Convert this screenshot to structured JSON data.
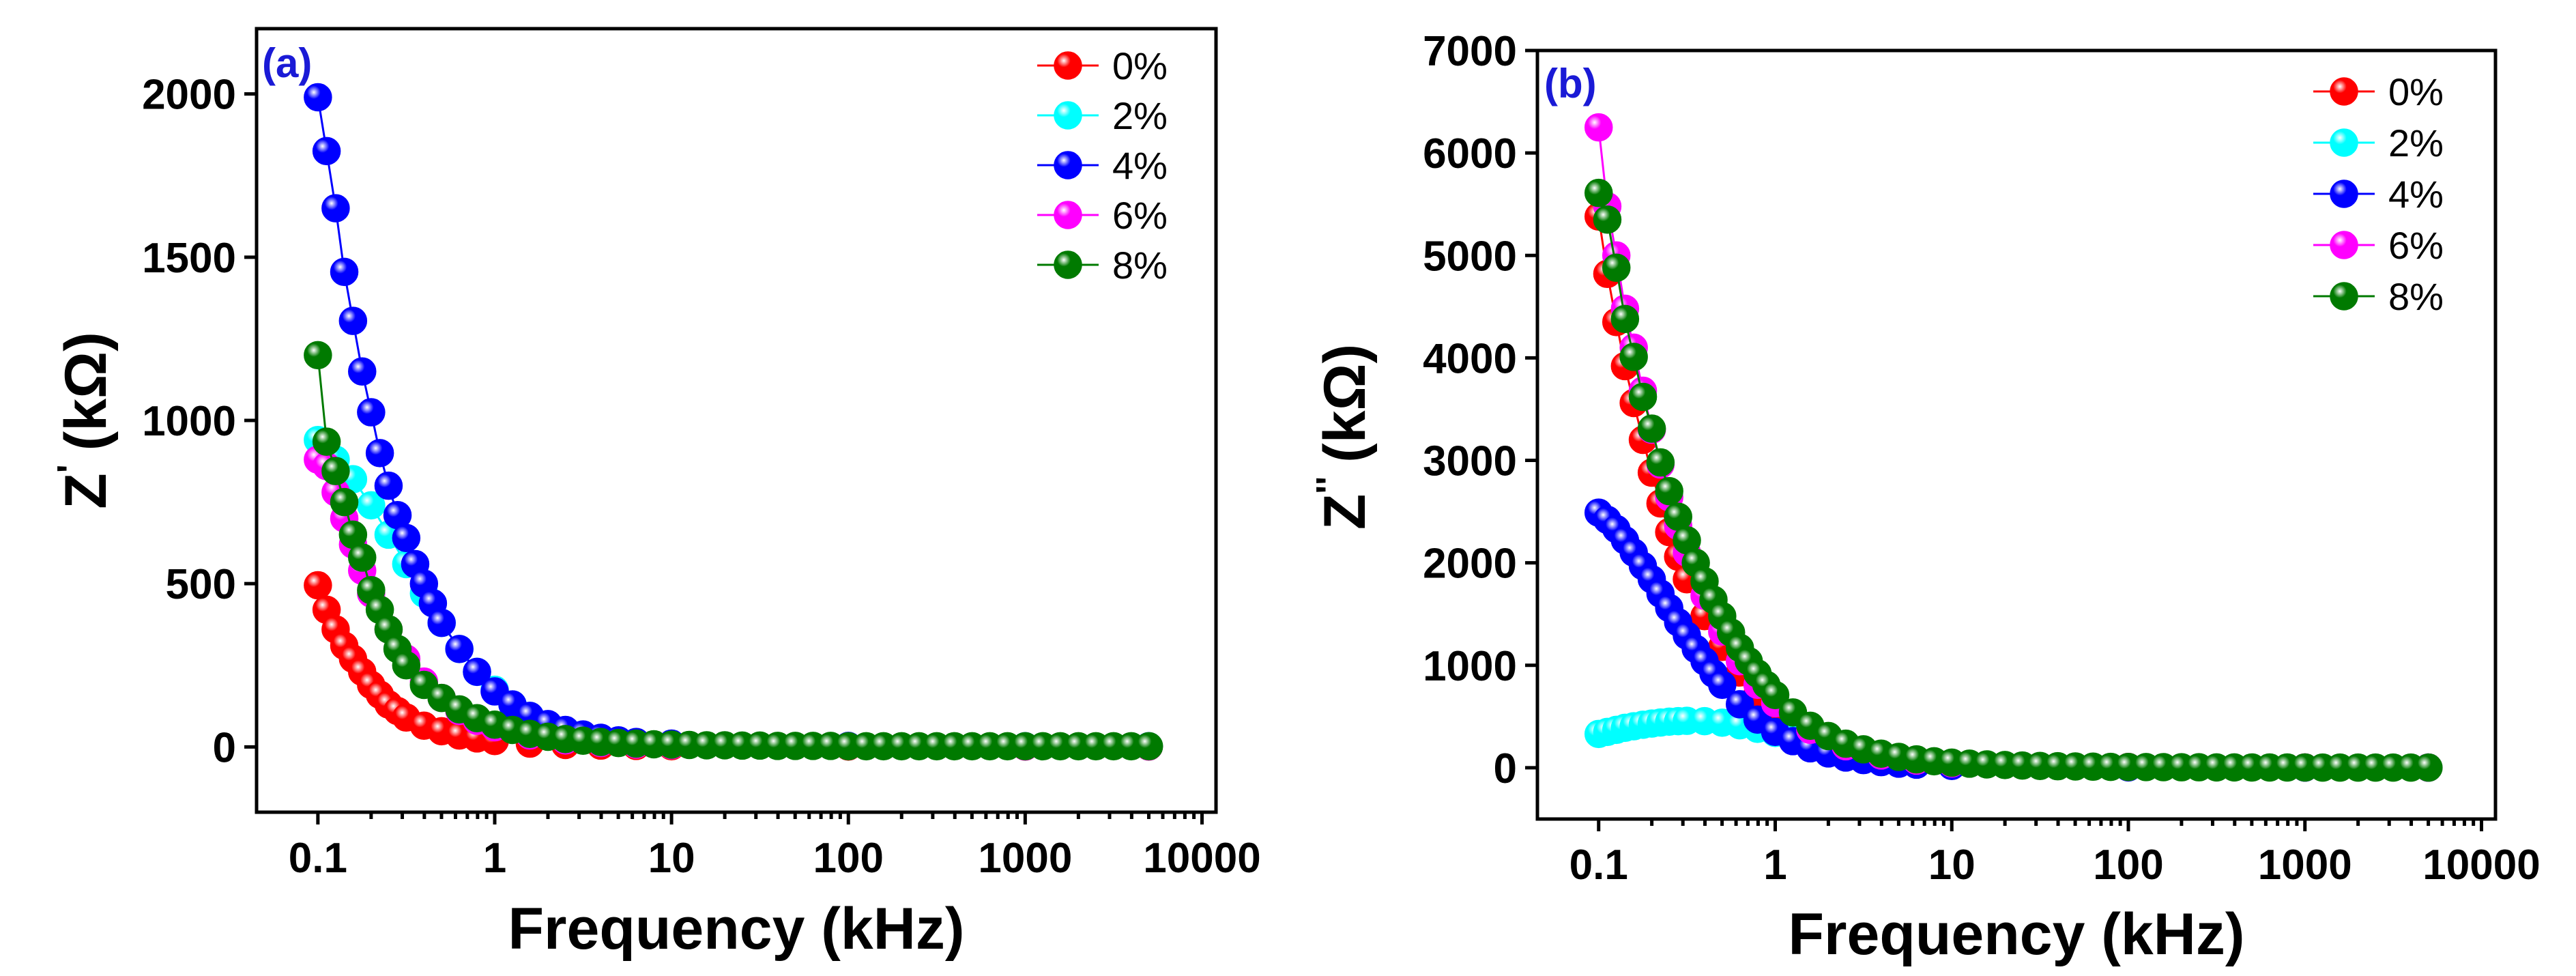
{
  "chart_data": [
    {
      "panel": "a",
      "type": "scatter",
      "panel_label": "(a)",
      "xlabel": "Frequency (kHz)",
      "ylabel": "Z",
      "ylabel_mark": "'",
      "ylabel_unit": "(kΩ)",
      "xscale": "log",
      "xlim": [
        0.045,
        12000
      ],
      "ylim": [
        -200,
        2200
      ],
      "xticks": [
        0.1,
        1,
        10,
        100,
        1000,
        10000
      ],
      "xtick_labels": [
        "0.1",
        "1",
        "10",
        "100",
        "1000",
        "10000"
      ],
      "yticks": [
        0,
        500,
        1000,
        1500,
        2000
      ],
      "ytick_labels": [
        "0",
        "500",
        "1000",
        "1500",
        "2000"
      ],
      "legend_position": "top-right",
      "series": [
        {
          "name": "0%",
          "color": "#ff0000",
          "x": [
            0.1,
            0.112,
            0.126,
            0.141,
            0.158,
            0.178,
            0.2,
            0.224,
            0.251,
            0.282,
            0.316,
            0.398,
            0.501,
            0.631,
            0.794,
            1,
            1.58,
            2.51,
            3.98,
            6.31,
            10,
            100,
            1000,
            5000
          ],
          "y": [
            495,
            420,
            360,
            310,
            270,
            230,
            190,
            160,
            130,
            110,
            90,
            65,
            48,
            35,
            26,
            18,
            10,
            6,
            4,
            3,
            2,
            1,
            1,
            1
          ]
        },
        {
          "name": "2%",
          "color": "#00ffff",
          "x": [
            0.1,
            0.126,
            0.158,
            0.2,
            0.251,
            0.316,
            0.398,
            0.501,
            0.631,
            0.794,
            1,
            1.26,
            1.58,
            2,
            2.51,
            3.16,
            3.98,
            5.01,
            6.31,
            10,
            100,
            1000,
            5000
          ],
          "y": [
            940,
            880,
            820,
            740,
            650,
            560,
            470,
            380,
            300,
            230,
            175,
            130,
            95,
            68,
            48,
            34,
            24,
            17,
            12,
            8,
            3,
            2,
            2
          ]
        },
        {
          "name": "4%",
          "color": "#0000ff",
          "x": [
            0.1,
            0.112,
            0.126,
            0.141,
            0.158,
            0.178,
            0.2,
            0.224,
            0.251,
            0.282,
            0.316,
            0.355,
            0.398,
            0.447,
            0.501,
            0.631,
            0.794,
            1,
            1.26,
            1.58,
            2,
            2.51,
            3.16,
            3.98,
            5.01,
            6.31,
            10,
            100,
            1000,
            5000
          ],
          "y": [
            1990,
            1825,
            1650,
            1455,
            1305,
            1150,
            1025,
            900,
            800,
            710,
            640,
            560,
            500,
            440,
            380,
            300,
            230,
            170,
            130,
            95,
            70,
            52,
            38,
            28,
            20,
            15,
            10,
            3,
            2,
            2
          ]
        },
        {
          "name": "6%",
          "color": "#ff00ff",
          "x": [
            0.1,
            0.112,
            0.126,
            0.141,
            0.158,
            0.178,
            0.2,
            0.251,
            0.316,
            0.398,
            0.501,
            0.631,
            0.794,
            1,
            1.58,
            2.51,
            3.98,
            6.31,
            10,
            100,
            1000,
            5000
          ],
          "y": [
            880,
            860,
            780,
            700,
            620,
            540,
            470,
            360,
            270,
            200,
            150,
            110,
            80,
            60,
            35,
            20,
            12,
            7,
            5,
            2,
            1,
            1
          ]
        },
        {
          "name": "8%",
          "color": "#007a00",
          "x": [
            0.1,
            0.112,
            0.126,
            0.141,
            0.158,
            0.178,
            0.2,
            0.224,
            0.251,
            0.282,
            0.316,
            0.398,
            0.501,
            0.631,
            0.794,
            1,
            1.26,
            1.58,
            2,
            2.51,
            3.16,
            3.98,
            5.01,
            6.31,
            7.94,
            10,
            12.6,
            15.8,
            20,
            25.1,
            31.6,
            39.8,
            50.1,
            63.1,
            79.4,
            100,
            126,
            158,
            200,
            251,
            316,
            398,
            501,
            631,
            794,
            1000,
            1260,
            1580,
            2000,
            2510,
            3160,
            3980,
            5010
          ],
          "y": [
            1200,
            935,
            845,
            750,
            650,
            580,
            480,
            420,
            360,
            300,
            250,
            190,
            150,
            115,
            88,
            68,
            52,
            40,
            31,
            24,
            19,
            15,
            12,
            10,
            8,
            7,
            6,
            5,
            5,
            4,
            4,
            3,
            3,
            3,
            3,
            2,
            2,
            2,
            2,
            2,
            2,
            2,
            2,
            2,
            2,
            2,
            2,
            2,
            2,
            2,
            2,
            2,
            2
          ]
        }
      ]
    },
    {
      "panel": "b",
      "type": "scatter",
      "panel_label": "(b)",
      "xlabel": "Frequency (kHz)",
      "ylabel": "Z",
      "ylabel_mark": "''",
      "ylabel_unit": "(kΩ)",
      "xscale": "log",
      "xlim": [
        0.045,
        12000
      ],
      "ylim": [
        -500,
        7000
      ],
      "xticks": [
        0.1,
        1,
        10,
        100,
        1000,
        10000
      ],
      "xtick_labels": [
        "0.1",
        "1",
        "10",
        "100",
        "1000",
        "10000"
      ],
      "yticks": [
        0,
        1000,
        2000,
        3000,
        4000,
        5000,
        6000,
        7000
      ],
      "ytick_labels": [
        "0",
        "1000",
        "2000",
        "3000",
        "4000",
        "5000",
        "6000",
        "7000"
      ],
      "legend_position": "top-right",
      "series": [
        {
          "name": "0%",
          "color": "#ff0000",
          "x": [
            0.1,
            0.112,
            0.126,
            0.141,
            0.158,
            0.178,
            0.2,
            0.224,
            0.251,
            0.282,
            0.316,
            0.398,
            0.501,
            0.631,
            0.794,
            1,
            1.58,
            2.51,
            3.98,
            6.31,
            10,
            100,
            1000,
            5000
          ],
          "y": [
            5380,
            4820,
            4350,
            3920,
            3560,
            3200,
            2880,
            2580,
            2300,
            2060,
            1840,
            1480,
            1180,
            930,
            720,
            560,
            330,
            190,
            110,
            65,
            40,
            8,
            3,
            2
          ]
        },
        {
          "name": "2%",
          "color": "#00ffff",
          "x": [
            0.1,
            0.112,
            0.126,
            0.141,
            0.158,
            0.178,
            0.2,
            0.224,
            0.251,
            0.282,
            0.316,
            0.398,
            0.501,
            0.631,
            0.794,
            1,
            1.26,
            1.58,
            2,
            2.51,
            3.16,
            3.98,
            5.01,
            6.31,
            10,
            100,
            1000,
            5000
          ],
          "y": [
            330,
            350,
            370,
            390,
            405,
            420,
            432,
            442,
            450,
            455,
            458,
            455,
            440,
            415,
            380,
            340,
            295,
            250,
            205,
            165,
            130,
            100,
            75,
            55,
            30,
            5,
            2,
            2
          ]
        },
        {
          "name": "4%",
          "color": "#0000ff",
          "x": [
            0.1,
            0.112,
            0.126,
            0.141,
            0.158,
            0.178,
            0.2,
            0.224,
            0.251,
            0.282,
            0.316,
            0.355,
            0.398,
            0.447,
            0.501,
            0.631,
            0.794,
            1,
            1.26,
            1.58,
            2,
            2.51,
            3.16,
            3.98,
            5.01,
            6.31,
            10,
            100,
            1000,
            5000
          ],
          "y": [
            2490,
            2420,
            2330,
            2220,
            2100,
            1970,
            1840,
            1700,
            1560,
            1420,
            1290,
            1160,
            1040,
            920,
            810,
            620,
            470,
            350,
            260,
            190,
            140,
            100,
            75,
            55,
            40,
            30,
            18,
            4,
            2,
            2
          ]
        },
        {
          "name": "6%",
          "color": "#ff00ff",
          "x": [
            0.1,
            0.112,
            0.126,
            0.141,
            0.158,
            0.178,
            0.2,
            0.224,
            0.251,
            0.282,
            0.316,
            0.398,
            0.501,
            0.631,
            0.794,
            1,
            1.58,
            2.51,
            3.98,
            6.31,
            10,
            100,
            1000,
            5000
          ],
          "y": [
            6250,
            5480,
            5000,
            4480,
            4100,
            3680,
            3300,
            2960,
            2640,
            2360,
            2100,
            1680,
            1330,
            1040,
            810,
            630,
            370,
            210,
            120,
            70,
            42,
            8,
            3,
            2
          ]
        },
        {
          "name": "8%",
          "color": "#007a00",
          "x": [
            0.1,
            0.112,
            0.126,
            0.141,
            0.158,
            0.178,
            0.2,
            0.224,
            0.251,
            0.282,
            0.316,
            0.355,
            0.398,
            0.447,
            0.501,
            0.562,
            0.631,
            0.708,
            0.794,
            0.891,
            1,
            1.26,
            1.58,
            2,
            2.51,
            3.16,
            3.98,
            5.01,
            6.31,
            7.94,
            10,
            12.6,
            15.8,
            20,
            25.1,
            31.6,
            39.8,
            50.1,
            63.1,
            79.4,
            100,
            126,
            158,
            200,
            251,
            316,
            398,
            501,
            631,
            794,
            1000,
            1260,
            1580,
            2000,
            2510,
            3160,
            3980,
            5010
          ],
          "y": [
            5610,
            5350,
            4880,
            4380,
            4010,
            3620,
            3310,
            2980,
            2700,
            2450,
            2220,
            2000,
            1820,
            1640,
            1480,
            1320,
            1170,
            1040,
            920,
            810,
            710,
            540,
            410,
            310,
            235,
            180,
            138,
            106,
            82,
            64,
            50,
            40,
            33,
            27,
            22,
            18,
            15,
            13,
            11,
            9,
            8,
            7,
            6,
            5,
            5,
            4,
            4,
            3,
            3,
            3,
            3,
            2,
            2,
            2,
            2,
            2,
            2,
            2
          ]
        }
      ]
    }
  ]
}
